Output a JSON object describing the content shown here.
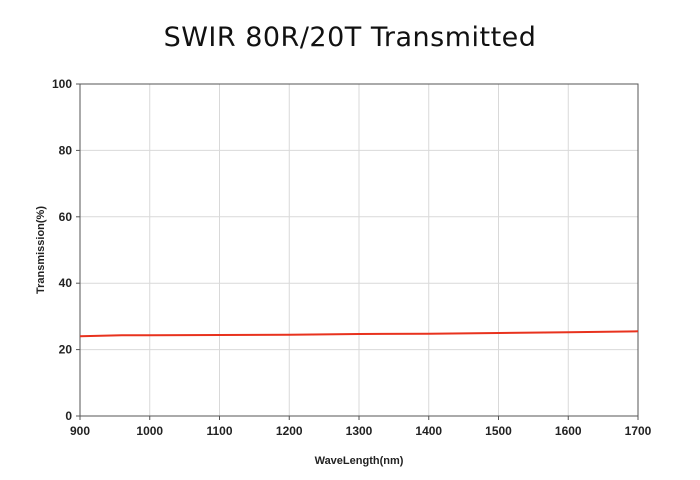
{
  "chart_data": {
    "type": "line",
    "title": "SWIR 80R/20T Transmitted",
    "xlabel": "WaveLength(nm)",
    "ylabel": "Transmission(%)",
    "xlim": [
      900,
      1700
    ],
    "ylim": [
      0,
      100
    ],
    "xticks": [
      900,
      1000,
      1100,
      1200,
      1300,
      1400,
      1500,
      1600,
      1700
    ],
    "yticks": [
      0,
      20,
      40,
      60,
      80,
      100
    ],
    "grid": true,
    "series": [
      {
        "color": "#e8321e",
        "x": [
          900,
          960,
          1000,
          1100,
          1200,
          1300,
          1400,
          1500,
          1600,
          1700
        ],
        "y": [
          24.0,
          24.3,
          24.3,
          24.4,
          24.5,
          24.7,
          24.8,
          25.0,
          25.2,
          25.5
        ]
      }
    ]
  }
}
